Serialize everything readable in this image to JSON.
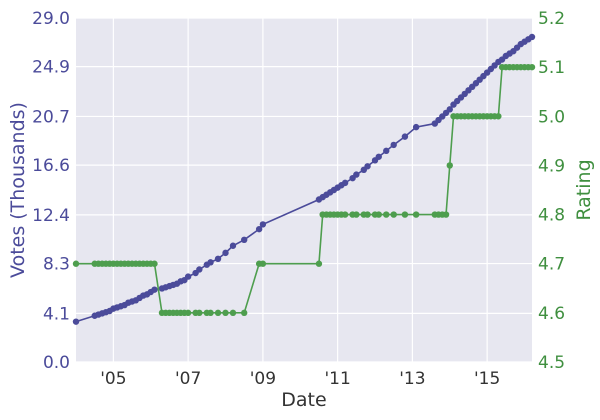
{
  "chart_data": {
    "type": "line",
    "xlabel": "Date",
    "ylabel_left": "Votes (Thousands)",
    "ylabel_right": "Rating",
    "x_ticks": [
      "'05",
      "'07",
      "'09",
      "'11",
      "'13",
      "'15"
    ],
    "x_tick_values": [
      2005,
      2007,
      2009,
      2011,
      2013,
      2015
    ],
    "xlim": [
      2004.0,
      2016.2
    ],
    "y_left_ticks": [
      "0.0",
      "4.1",
      "8.3",
      "12.4",
      "16.6",
      "20.7",
      "24.9",
      "29.0"
    ],
    "y_left_lim": [
      0.0,
      29.0
    ],
    "y_right_ticks": [
      "4.5",
      "4.6",
      "4.7",
      "4.8",
      "4.9",
      "5.0",
      "5.1",
      "5.2"
    ],
    "y_right_lim": [
      4.5,
      5.2
    ],
    "grid": true,
    "colors": {
      "votes": "#4b4b9a",
      "rating": "#4e9e4e",
      "plot_bg": "#e7e7f0",
      "grid": "#ffffff"
    },
    "series": [
      {
        "axis": "left",
        "x": [
          2004.0,
          2004.5,
          2004.6,
          2004.7,
          2004.8,
          2004.9,
          2005.0,
          2005.1,
          2005.2,
          2005.3,
          2005.4,
          2005.5,
          2005.6,
          2005.7,
          2005.8,
          2005.9,
          2006.0,
          2006.1,
          2006.3,
          2006.4,
          2006.5,
          2006.6,
          2006.7,
          2006.8,
          2006.9,
          2007.0,
          2007.2,
          2007.3,
          2007.5,
          2007.6,
          2007.8,
          2008.0,
          2008.2,
          2008.5,
          2008.9,
          2009.0,
          2010.5,
          2010.6,
          2010.7,
          2010.8,
          2010.9,
          2011.0,
          2011.1,
          2011.2,
          2011.4,
          2011.5,
          2011.7,
          2011.8,
          2012.0,
          2012.1,
          2012.3,
          2012.5,
          2012.8,
          2013.1,
          2013.6,
          2013.7,
          2013.8,
          2013.9,
          2014.0,
          2014.1,
          2014.2,
          2014.3,
          2014.4,
          2014.5,
          2014.6,
          2014.7,
          2014.8,
          2014.9,
          2015.0,
          2015.1,
          2015.2,
          2015.3,
          2015.4,
          2015.5,
          2015.6,
          2015.7,
          2015.8,
          2015.9,
          2016.0,
          2016.1,
          2016.2
        ],
        "values": [
          3.4,
          3.9,
          4.0,
          4.1,
          4.2,
          4.3,
          4.5,
          4.6,
          4.7,
          4.8,
          5.0,
          5.1,
          5.2,
          5.4,
          5.6,
          5.7,
          5.9,
          6.1,
          6.2,
          6.3,
          6.4,
          6.5,
          6.6,
          6.8,
          6.9,
          7.2,
          7.5,
          7.8,
          8.2,
          8.4,
          8.7,
          9.2,
          9.8,
          10.3,
          11.2,
          11.6,
          13.7,
          13.9,
          14.1,
          14.3,
          14.5,
          14.7,
          14.9,
          15.1,
          15.5,
          15.8,
          16.2,
          16.5,
          17.0,
          17.3,
          17.8,
          18.3,
          19.0,
          19.8,
          20.1,
          20.4,
          20.7,
          21.0,
          21.3,
          21.7,
          22.0,
          22.3,
          22.6,
          22.9,
          23.2,
          23.5,
          23.8,
          24.1,
          24.4,
          24.7,
          25.0,
          25.3,
          25.5,
          25.8,
          26.0,
          26.2,
          26.5,
          26.8,
          27.0,
          27.2,
          27.4
        ]
      },
      {
        "axis": "right",
        "x": [
          2004.0,
          2004.5,
          2004.6,
          2004.7,
          2004.8,
          2004.9,
          2005.0,
          2005.1,
          2005.2,
          2005.3,
          2005.4,
          2005.5,
          2005.6,
          2005.7,
          2005.8,
          2005.9,
          2006.0,
          2006.1,
          2006.3,
          2006.4,
          2006.5,
          2006.6,
          2006.7,
          2006.8,
          2006.9,
          2007.0,
          2007.2,
          2007.3,
          2007.5,
          2007.6,
          2007.8,
          2008.0,
          2008.2,
          2008.5,
          2008.9,
          2009.0,
          2010.5,
          2010.6,
          2010.7,
          2010.8,
          2010.9,
          2011.0,
          2011.1,
          2011.2,
          2011.4,
          2011.5,
          2011.7,
          2011.8,
          2012.0,
          2012.1,
          2012.3,
          2012.5,
          2012.8,
          2013.1,
          2013.6,
          2013.7,
          2013.8,
          2013.9,
          2014.0,
          2014.1,
          2014.2,
          2014.3,
          2014.4,
          2014.5,
          2014.6,
          2014.7,
          2014.8,
          2014.9,
          2015.0,
          2015.1,
          2015.2,
          2015.3,
          2015.4,
          2015.5,
          2015.6,
          2015.7,
          2015.8,
          2015.9,
          2016.0,
          2016.1,
          2016.2
        ],
        "values": [
          4.7,
          4.7,
          4.7,
          4.7,
          4.7,
          4.7,
          4.7,
          4.7,
          4.7,
          4.7,
          4.7,
          4.7,
          4.7,
          4.7,
          4.7,
          4.7,
          4.7,
          4.7,
          4.6,
          4.6,
          4.6,
          4.6,
          4.6,
          4.6,
          4.6,
          4.6,
          4.6,
          4.6,
          4.6,
          4.6,
          4.6,
          4.6,
          4.6,
          4.6,
          4.7,
          4.7,
          4.7,
          4.8,
          4.8,
          4.8,
          4.8,
          4.8,
          4.8,
          4.8,
          4.8,
          4.8,
          4.8,
          4.8,
          4.8,
          4.8,
          4.8,
          4.8,
          4.8,
          4.8,
          4.8,
          4.8,
          4.8,
          4.8,
          4.9,
          5.0,
          5.0,
          5.0,
          5.0,
          5.0,
          5.0,
          5.0,
          5.0,
          5.0,
          5.0,
          5.0,
          5.0,
          5.0,
          5.1,
          5.1,
          5.1,
          5.1,
          5.1,
          5.1,
          5.1,
          5.1,
          5.1
        ]
      }
    ]
  }
}
